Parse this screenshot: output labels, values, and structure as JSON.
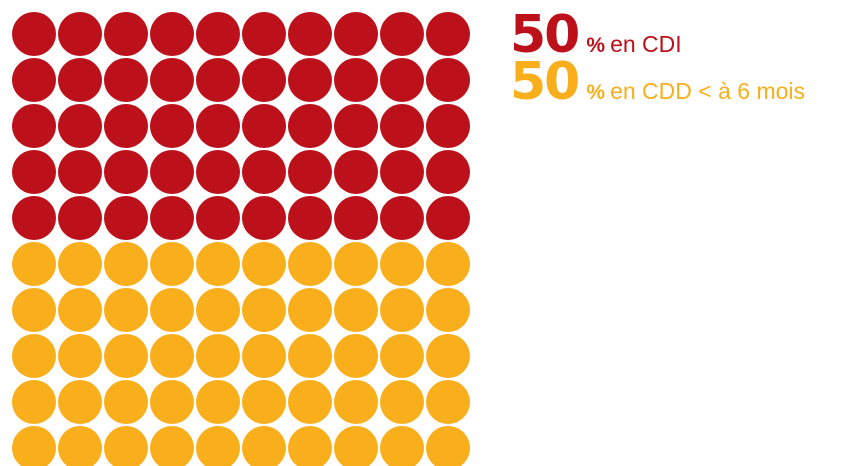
{
  "chart_data": {
    "type": "waffle",
    "grid": {
      "rows": 10,
      "cols": 10
    },
    "series": [
      {
        "name": "en CDI",
        "value": 50,
        "unit": "%",
        "color": "#BC111B"
      },
      {
        "name": "en CDD < à 6 mois",
        "value": 50,
        "unit": "%",
        "color": "#F9AF1C"
      }
    ]
  },
  "legend": {
    "items": [
      {
        "value": "50",
        "unit": "%",
        "label": "en CDI",
        "color": "#BC111B"
      },
      {
        "value": "50",
        "unit": "%",
        "label": "en CDD < à 6 mois",
        "color": "#F9AF1C"
      }
    ]
  }
}
